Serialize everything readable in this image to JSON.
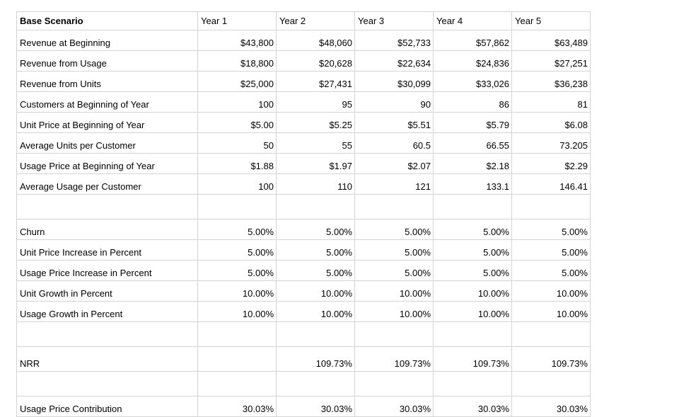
{
  "header": {
    "title": "Base Scenario",
    "years": [
      "Year 1",
      "Year 2",
      "Year 3",
      "Year 4",
      "Year 5"
    ]
  },
  "rows": [
    {
      "label": "Revenue at Beginning",
      "values": [
        "$43,800",
        "$48,060",
        "$52,733",
        "$57,862",
        "$63,489"
      ]
    },
    {
      "label": "Revenue from Usage",
      "values": [
        "$18,800",
        "$20,628",
        "$22,634",
        "$24,836",
        "$27,251"
      ]
    },
    {
      "label": "Revenue from Units",
      "values": [
        "$25,000",
        "$27,431",
        "$30,099",
        "$33,026",
        "$36,238"
      ]
    },
    {
      "label": "Customers at Beginning of Year",
      "values": [
        "100",
        "95",
        "90",
        "86",
        "81"
      ]
    },
    {
      "label": "Unit Price at Beginning of Year",
      "values": [
        "$5.00",
        "$5.25",
        "$5.51",
        "$5.79",
        "$6.08"
      ]
    },
    {
      "label": "Average Units per Customer",
      "values": [
        "50",
        "55",
        "60.5",
        "66.55",
        "73.205"
      ]
    },
    {
      "label": "Usage Price at Beginning of Year",
      "values": [
        "$1.88",
        "$1.97",
        "$2.07",
        "$2.18",
        "$2.29"
      ]
    },
    {
      "label": "Average Usage per Customer",
      "values": [
        "100",
        "110",
        "121",
        "133.1",
        "146.41"
      ]
    },
    {
      "label": "",
      "values": [
        "",
        "",
        "",
        "",
        ""
      ]
    },
    {
      "label": "Churn",
      "values": [
        "5.00%",
        "5.00%",
        "5.00%",
        "5.00%",
        "5.00%"
      ]
    },
    {
      "label": "Unit Price Increase in Percent",
      "values": [
        "5.00%",
        "5.00%",
        "5.00%",
        "5.00%",
        "5.00%"
      ]
    },
    {
      "label": "Usage Price Increase in Percent",
      "values": [
        "5.00%",
        "5.00%",
        "5.00%",
        "5.00%",
        "5.00%"
      ]
    },
    {
      "label": "Unit Growth in Percent",
      "values": [
        "10.00%",
        "10.00%",
        "10.00%",
        "10.00%",
        "10.00%"
      ]
    },
    {
      "label": "Usage Growth in Percent",
      "values": [
        "10.00%",
        "10.00%",
        "10.00%",
        "10.00%",
        "10.00%"
      ]
    },
    {
      "label": "",
      "values": [
        "",
        "",
        "",
        "",
        ""
      ]
    },
    {
      "label": "NRR",
      "values": [
        "",
        "109.73%",
        "109.73%",
        "109.73%",
        "109.73%"
      ]
    },
    {
      "label": "",
      "values": [
        "",
        "",
        "",
        "",
        ""
      ]
    },
    {
      "label": "Usage Price Contribution",
      "values": [
        "30.03%",
        "30.03%",
        "30.03%",
        "30.03%",
        "30.03%"
      ]
    }
  ]
}
